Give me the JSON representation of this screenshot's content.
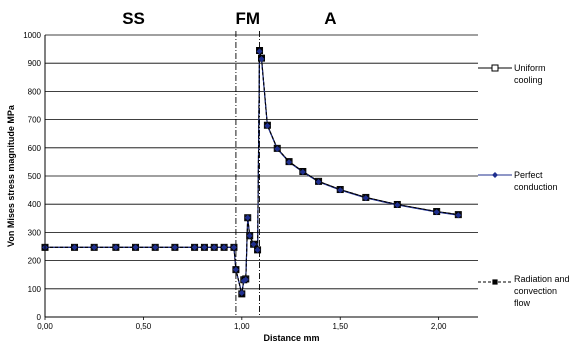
{
  "chart_data": {
    "type": "line",
    "xlabel": "Distance mm",
    "ylabel": "Von Mises stress magnitude MPa",
    "xlim": [
      0,
      2.2
    ],
    "ylim": [
      0,
      1000
    ],
    "x_ticks": [
      "0,00",
      "0,50",
      "1,00",
      "1,50",
      "2,00"
    ],
    "y_ticks": [
      "0",
      "100",
      "200",
      "300",
      "400",
      "500",
      "600",
      "700",
      "800",
      "900",
      "1000"
    ],
    "grid": "horizontal",
    "legend_position": "right",
    "zone_labels": [
      {
        "text": "SS",
        "x": 0.45
      },
      {
        "text": "FM",
        "x": 1.03
      },
      {
        "text": "A",
        "x": 1.45
      }
    ],
    "zone_boundaries": [
      0.97,
      1.09
    ],
    "x": [
      0.0,
      0.15,
      0.25,
      0.36,
      0.46,
      0.56,
      0.66,
      0.76,
      0.81,
      0.86,
      0.91,
      0.96,
      0.97,
      1.0,
      1.01,
      1.02,
      1.03,
      1.04,
      1.06,
      1.08,
      1.09,
      1.1,
      1.13,
      1.18,
      1.24,
      1.31,
      1.39,
      1.5,
      1.63,
      1.79,
      1.99,
      2.1
    ],
    "series": [
      {
        "name": "Uniform cooling",
        "marker": "square-open",
        "line": "solid",
        "color": "#000000",
        "values": [
          247,
          247,
          247,
          247,
          247,
          247,
          247,
          247,
          247,
          247,
          247,
          247,
          168,
          82,
          132,
          135,
          352,
          288,
          258,
          238,
          945,
          918,
          680,
          598,
          551,
          516,
          481,
          452,
          424,
          399,
          374,
          363
        ]
      },
      {
        "name": "Perfect conduction",
        "marker": "diamond",
        "line": "solid",
        "color": "#1f2f8f",
        "values": [
          247,
          247,
          247,
          247,
          247,
          247,
          247,
          247,
          247,
          247,
          247,
          247,
          168,
          85,
          128,
          133,
          352,
          288,
          258,
          238,
          942,
          915,
          678,
          596,
          549,
          514,
          479,
          450,
          422,
          397,
          372,
          361
        ]
      },
      {
        "name": "Radiation and convection flow",
        "marker": "square-filled",
        "line": "dashed",
        "color": "#000000",
        "values": [
          247,
          247,
          247,
          247,
          247,
          247,
          247,
          247,
          247,
          247,
          247,
          247,
          168,
          82,
          132,
          135,
          352,
          288,
          258,
          238,
          945,
          918,
          680,
          598,
          551,
          516,
          481,
          452,
          424,
          399,
          374,
          363
        ]
      }
    ],
    "legend": [
      {
        "lines": [
          "Uniform",
          "cooling"
        ]
      },
      {
        "lines": [
          "Perfect",
          "conduction"
        ]
      },
      {
        "lines": [
          "Radiation and",
          "convection",
          "flow"
        ]
      }
    ]
  }
}
